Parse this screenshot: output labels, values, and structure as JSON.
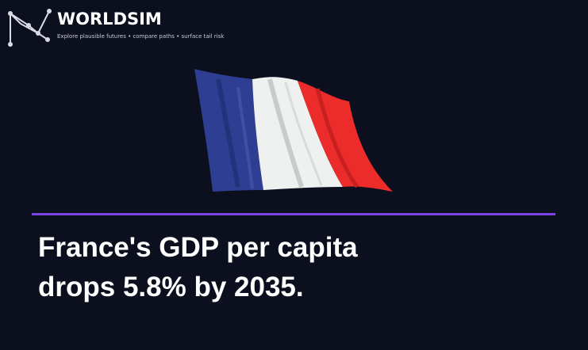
{
  "header": {
    "title": "WORLDSIM",
    "tagline": "Explore plausible futures • compare paths • surface tail risk"
  },
  "headline": {
    "lines": [
      "France's GDP per capita",
      "drops 5.8% by 2035."
    ]
  }
}
